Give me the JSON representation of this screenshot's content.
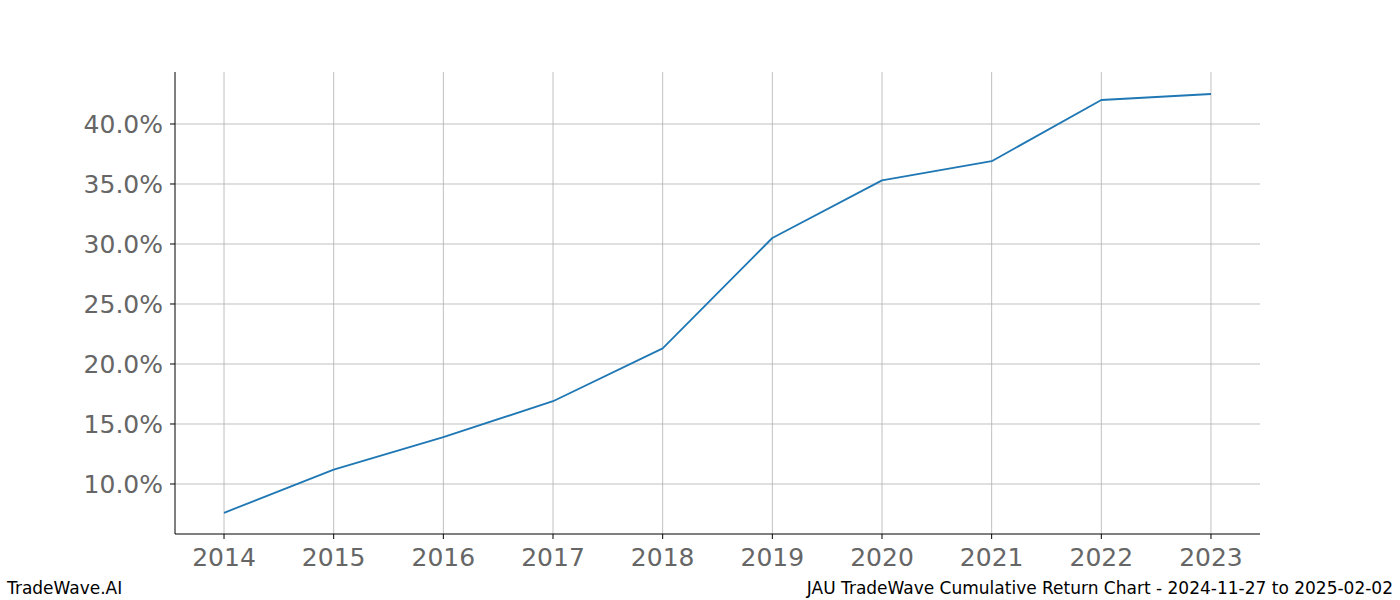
{
  "chart_data": {
    "type": "line",
    "title": "JAU TradeWave Cumulative Return Chart - 2024-11-27 to 2025-02-02",
    "watermark": "TradeWave.AI",
    "x": [
      2014,
      2015,
      2016,
      2017,
      2018,
      2019,
      2020,
      2021,
      2022,
      2023
    ],
    "values": [
      7.6,
      11.2,
      13.9,
      16.9,
      21.3,
      30.5,
      35.3,
      36.9,
      42.0,
      42.5
    ],
    "color": "#1f77b4",
    "xlim": [
      2013.553,
      2023.447
    ],
    "xticks": [
      2014,
      2015,
      2016,
      2017,
      2018,
      2019,
      2020,
      2021,
      2022,
      2023
    ],
    "ylim": [
      5.833,
      44.333
    ],
    "yticks": [
      {
        "value": 10,
        "label": "10.0%"
      },
      {
        "value": 15,
        "label": "15.0%"
      },
      {
        "value": 20,
        "label": "20.0%"
      },
      {
        "value": 25,
        "label": "25.0%"
      },
      {
        "value": 30,
        "label": "30.0%"
      },
      {
        "value": 35,
        "label": "35.0%"
      },
      {
        "value": 40,
        "label": "40.0%"
      }
    ],
    "grid": true
  }
}
